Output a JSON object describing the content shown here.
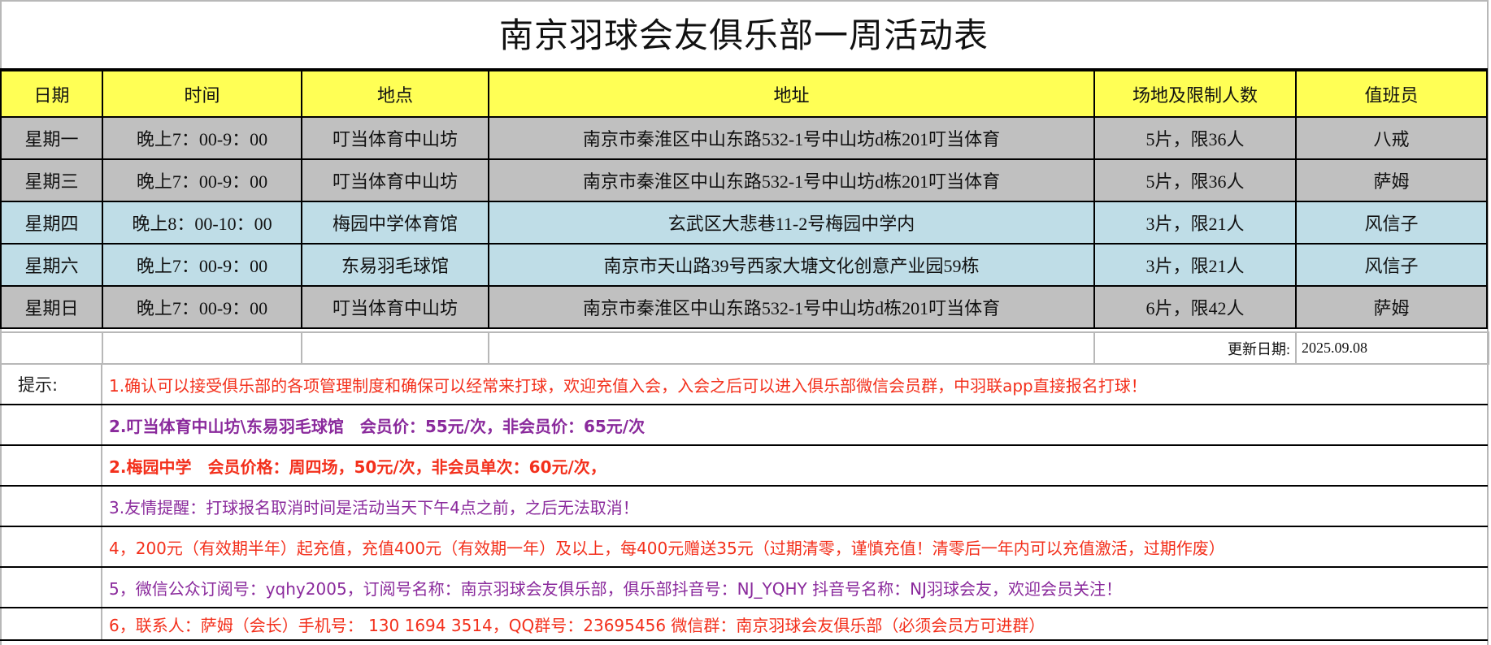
{
  "title": "南京羽球会友俱乐部一周活动表",
  "colors": {
    "header_bg": "#ffff55",
    "gray_row": "#c0c0c0",
    "blue_row": "#bfdde7",
    "hint_red": "#f3301c",
    "hint_purple": "#8a2a9c"
  },
  "table": {
    "headers": [
      "日期",
      "时间",
      "地点",
      "地址",
      "场地及限制人数",
      "值班员"
    ],
    "rows": [
      {
        "day": "星期一",
        "time": "晚上7：00-9：00",
        "venue": "叮当体育中山坊",
        "address": "南京市秦淮区中山东路532-1号中山坊d栋201叮当体育",
        "courts": "5片，限36人",
        "staff": "八戒",
        "shade": "gray"
      },
      {
        "day": "星期三",
        "time": "晚上7：00-9：00",
        "venue": "叮当体育中山坊",
        "address": "南京市秦淮区中山东路532-1号中山坊d栋201叮当体育",
        "courts": "5片，限36人",
        "staff": "萨姆",
        "shade": "gray"
      },
      {
        "day": "星期四",
        "time": "晚上8：00-10：00",
        "venue": "梅园中学体育馆",
        "address": "玄武区大悲巷11-2号梅园中学内",
        "courts": "3片，限21人",
        "staff": "风信子",
        "shade": "blue"
      },
      {
        "day": "星期六",
        "time": "晚上7：00-9：00",
        "venue": "东易羽毛球馆",
        "address": "南京市天山路39号西家大塘文化创意产业园59栋",
        "courts": "3片，限21人",
        "staff": "风信子",
        "shade": "blue"
      },
      {
        "day": "星期日",
        "time": "晚上7：00-9：00",
        "venue": "叮当体育中山坊",
        "address": "南京市秦淮区中山东路532-1号中山坊d栋201叮当体育",
        "courts": "6片，限42人",
        "staff": "萨姆",
        "shade": "gray"
      }
    ]
  },
  "update": {
    "label": "更新日期:",
    "date": "2025.09.08"
  },
  "hints": {
    "label": "提示:",
    "items": [
      {
        "text": "1.确认可以接受俱乐部的各项管理制度和确保可以经常来打球，欢迎充值入会，入会之后可以进入俱乐部微信会员群，中羽联app直接报名打球！",
        "color": "red"
      },
      {
        "text": "2.叮当体育中山坊\\东易羽毛球馆　会员价：55元/次，非会员价：65元/次",
        "color": "purple"
      },
      {
        "text": "2.梅园中学　会员价格：周四场，50元/次，非会员单次：60元/次，",
        "color": "red"
      },
      {
        "text": "3.友情提醒：打球报名取消时间是活动当天下午4点之前，之后无法取消！",
        "color": "purple"
      },
      {
        "text": "4，200元（有效期半年）起充值，充值400元（有效期一年）及以上，每400元赠送35元（过期清零，谨慎充值！清零后一年内可以充值激活，过期作废）",
        "color": "red"
      },
      {
        "text": "5，微信公众订阅号：yqhy2005，订阅号名称：南京羽球会友俱乐部，俱乐部抖音号：NJ_YQHY 抖音号名称：NJ羽球会友，欢迎会员关注！",
        "color": "purple"
      },
      {
        "text": "6，联系人：萨姆（会长）手机号： 130 1694 3514，QQ群号：23695456  微信群：南京羽球会友俱乐部（必须会员方可进群）",
        "color": "red"
      }
    ]
  }
}
